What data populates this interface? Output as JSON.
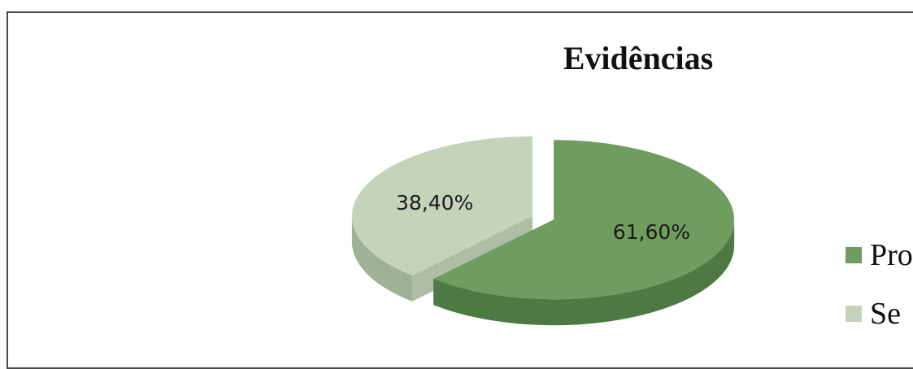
{
  "chart_data": {
    "type": "pie",
    "style": "3d-exploded",
    "title": "Evidências",
    "slices": [
      {
        "label": "Pro",
        "value": 61.6,
        "data_label": "61,60%",
        "color": "#6e9d5f",
        "side_color": "#4d7a42"
      },
      {
        "label": "Se",
        "value": 38.4,
        "data_label": "38,40%",
        "color": "#c5d3bb",
        "side_color": "#9fb197"
      }
    ],
    "legend_position": "right",
    "legend_truncated": true
  }
}
